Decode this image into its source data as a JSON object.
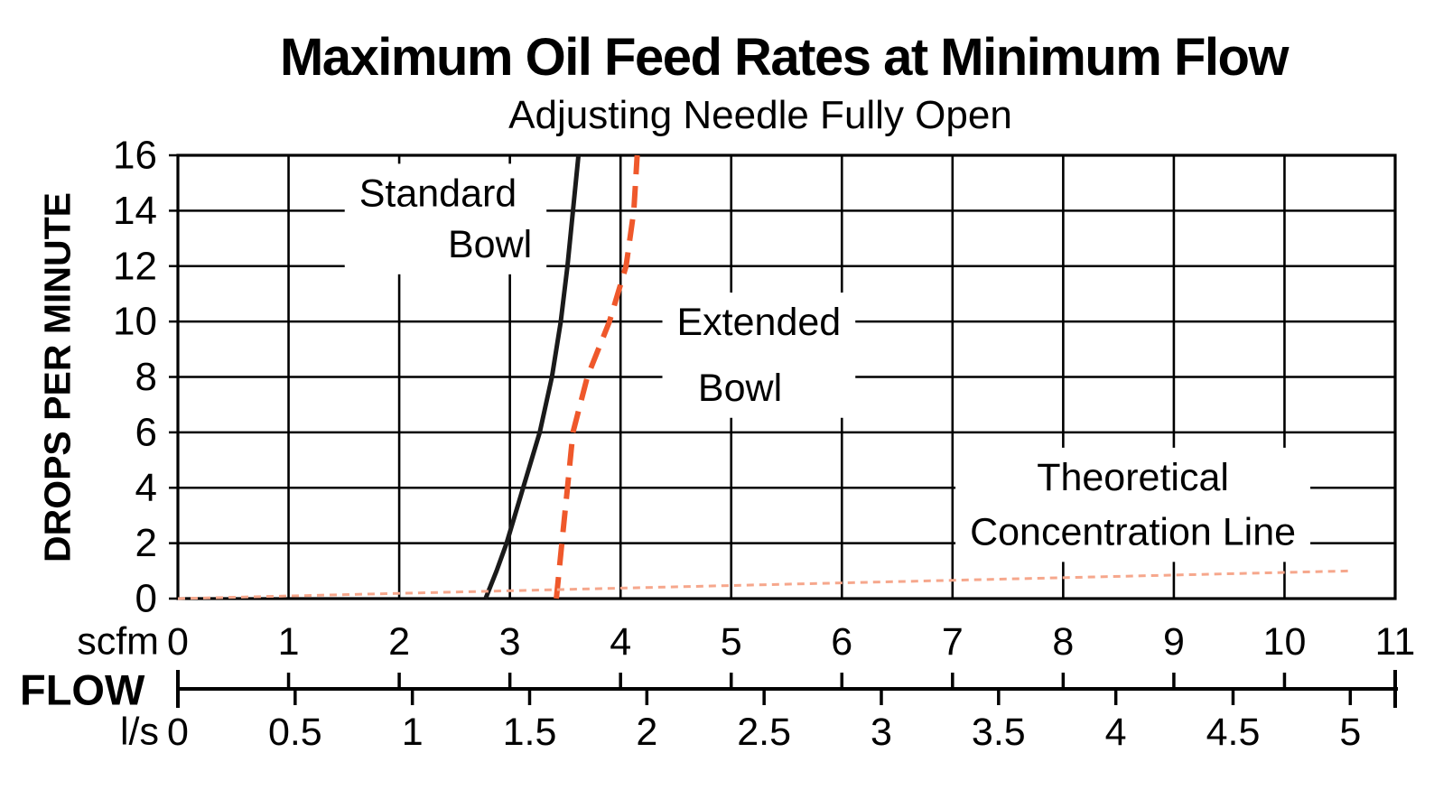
{
  "header": {
    "title": "Maximum Oil Feed Rates at Minimum Flow",
    "subtitle": "Adjusting Needle Fully Open"
  },
  "chart_data": {
    "type": "line",
    "title": "Maximum Oil Feed Rates at Minimum Flow",
    "subtitle": "Adjusting Needle Fully Open",
    "grid": "on",
    "y_axis": {
      "label": "DROPS PER MINUTE",
      "range": [
        0,
        16
      ],
      "tick_step": 2,
      "ticks": [
        "0",
        "2",
        "4",
        "6",
        "8",
        "10",
        "12",
        "14",
        "16"
      ]
    },
    "x_axis": {
      "label": "FLOW",
      "primary": {
        "unit": "scfm",
        "range": [
          0,
          11
        ],
        "ticks": [
          "0",
          "1",
          "2",
          "3",
          "4",
          "5",
          "6",
          "7",
          "8",
          "9",
          "10",
          "11"
        ]
      },
      "secondary": {
        "unit": "l/s",
        "range": [
          0,
          5
        ],
        "scfm_per_unit": 2.1189,
        "ticks": [
          "0",
          "0.5",
          "1",
          "1.5",
          "2",
          "2.5",
          "3",
          "3.5",
          "4",
          "4.5",
          "5"
        ]
      }
    },
    "series": [
      {
        "name": "Standard Bowl",
        "line_style": "solid",
        "color": "#1a1a1a",
        "stroke_width": 5,
        "dash": "",
        "points": [
          [
            2.78,
            0
          ],
          [
            2.88,
            1
          ],
          [
            2.97,
            2
          ],
          [
            3.12,
            4
          ],
          [
            3.27,
            6
          ],
          [
            3.38,
            8
          ],
          [
            3.46,
            10
          ],
          [
            3.52,
            12
          ],
          [
            3.57,
            14
          ],
          [
            3.62,
            16
          ]
        ]
      },
      {
        "name": "Extended Bowl",
        "line_style": "dashed",
        "color": "#ef582b",
        "stroke_width": 6,
        "dash": "24 13",
        "points": [
          [
            3.42,
            0
          ],
          [
            3.47,
            2
          ],
          [
            3.52,
            4
          ],
          [
            3.57,
            6
          ],
          [
            3.7,
            8
          ],
          [
            3.9,
            10
          ],
          [
            4.05,
            12
          ],
          [
            4.12,
            14
          ],
          [
            4.15,
            16
          ]
        ]
      },
      {
        "name": "Theoretical Concentration Line",
        "line_style": "dotted",
        "color": "#f6a78c",
        "stroke_width": 3,
        "dash": "8 6",
        "points": [
          [
            0,
            0
          ],
          [
            10.6,
            1
          ]
        ]
      }
    ],
    "annotations": [
      {
        "name": "standard-bowl-label",
        "lines": [
          {
            "text": "Standard",
            "x": 2.35,
            "y": 14.62
          },
          {
            "text": "Bowl",
            "x": 2.82,
            "y": 12.78
          }
        ]
      },
      {
        "name": "extended-bowl-label",
        "lines": [
          {
            "text": "Extended",
            "x": 5.25,
            "y": 9.97
          },
          {
            "text": "Bowl",
            "x": 5.08,
            "y": 7.6
          }
        ]
      },
      {
        "name": "theoretical-concentration-label",
        "lines": [
          {
            "text": "Theoretical",
            "x": 8.63,
            "y": 4.37
          },
          {
            "text": "Concentration Line",
            "x": 8.63,
            "y": 2.4
          }
        ]
      }
    ],
    "colors": {
      "grid": "#000000",
      "text": "#000000",
      "standard_bowl": "#1a1a1a",
      "extended_bowl": "#ef582b",
      "theoretical_line": "#f6a78c"
    }
  }
}
